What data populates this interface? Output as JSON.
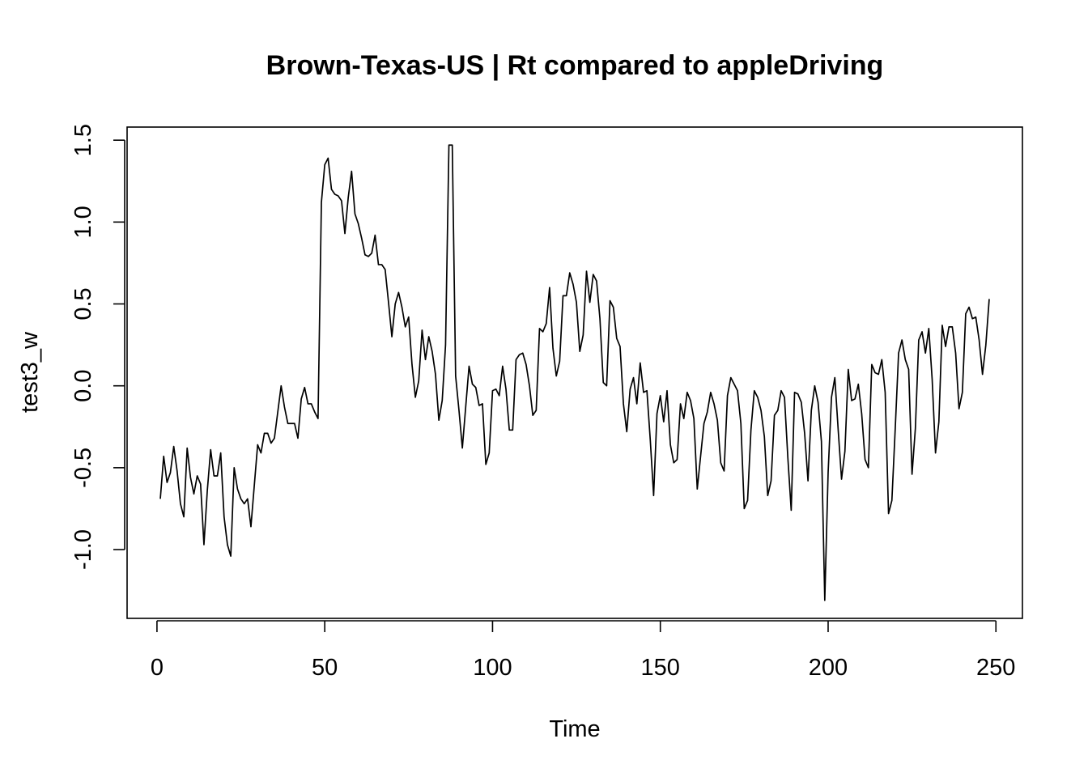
{
  "chart_data": {
    "type": "line",
    "title": "Brown-Texas-US | Rt compared to appleDriving",
    "xlabel": "Time",
    "ylabel": "test3_w",
    "xlim": [
      -8.9,
      257.9
    ],
    "ylim": [
      -1.42,
      1.58
    ],
    "xticks": [
      0,
      50,
      100,
      150,
      200,
      250
    ],
    "yticks": [
      -1.0,
      -0.5,
      0.0,
      0.5,
      1.0,
      1.5
    ],
    "xtick_labels": [
      "0",
      "50",
      "100",
      "150",
      "200",
      "250"
    ],
    "ytick_labels": [
      "-1.0",
      "-0.5",
      "0.0",
      "0.5",
      "1.0",
      "1.5"
    ],
    "grid": false,
    "legend": "none",
    "line_color": "#000000",
    "series": [
      {
        "x": [
          1,
          2,
          3,
          4,
          5,
          6,
          7,
          8,
          9,
          10,
          11,
          12,
          13,
          14,
          15,
          16,
          17,
          18,
          19,
          20,
          21,
          22,
          23,
          24,
          25,
          26,
          27,
          28,
          29,
          30,
          31,
          32,
          33,
          34,
          35,
          36,
          37,
          38,
          39,
          40,
          41,
          42,
          43,
          44,
          45,
          46,
          47,
          48,
          49,
          50,
          51,
          52,
          53,
          54,
          55,
          56,
          57,
          58,
          59,
          60,
          61,
          62,
          63,
          64,
          65,
          66,
          67,
          68,
          69,
          70,
          71,
          72,
          73,
          74,
          75,
          76,
          77,
          78,
          79,
          80,
          81,
          82,
          83,
          84,
          85,
          86,
          87,
          88,
          89,
          90,
          91,
          92,
          93,
          94,
          95,
          96,
          97,
          98,
          99,
          100,
          101,
          102,
          103,
          104,
          105,
          106,
          107,
          108,
          109,
          110,
          111,
          112,
          113,
          114,
          115,
          116,
          117,
          118,
          119,
          120,
          121,
          122,
          123,
          124,
          125,
          126,
          127,
          128,
          129,
          130,
          131,
          132,
          133,
          134,
          135,
          136,
          137,
          138,
          139,
          140,
          141,
          142,
          143,
          144,
          145,
          146,
          147,
          148,
          149,
          150,
          151,
          152,
          153,
          154,
          155,
          156,
          157,
          158,
          159,
          160,
          161,
          162,
          163,
          164,
          165,
          166,
          167,
          168,
          169,
          170,
          171,
          172,
          173,
          174,
          175,
          176,
          177,
          178,
          179,
          180,
          181,
          182,
          183,
          184,
          185,
          186,
          187,
          188,
          189,
          190,
          191,
          192,
          193,
          194,
          195,
          196,
          197,
          198,
          199,
          200,
          201,
          202,
          203,
          204,
          205,
          206,
          207,
          208,
          209,
          210,
          211,
          212,
          213,
          214,
          215,
          216,
          217,
          218,
          219,
          220,
          221,
          222,
          223,
          224,
          225,
          226,
          227,
          228,
          229,
          230,
          231,
          232,
          233,
          234,
          235,
          236,
          237,
          238,
          239,
          240,
          241,
          242,
          243,
          244,
          245,
          246,
          247,
          248
        ],
        "y": [
          -0.69,
          -0.43,
          -0.59,
          -0.53,
          -0.37,
          -0.52,
          -0.72,
          -0.8,
          -0.38,
          -0.56,
          -0.66,
          -0.55,
          -0.6,
          -0.97,
          -0.64,
          -0.39,
          -0.55,
          -0.55,
          -0.41,
          -0.8,
          -0.97,
          -1.04,
          -0.5,
          -0.63,
          -0.69,
          -0.72,
          -0.69,
          -0.86,
          -0.61,
          -0.36,
          -0.41,
          -0.29,
          -0.29,
          -0.35,
          -0.32,
          -0.16,
          0.0,
          -0.13,
          -0.23,
          -0.23,
          -0.23,
          -0.32,
          -0.08,
          -0.01,
          -0.11,
          -0.11,
          -0.16,
          -0.2,
          1.12,
          1.35,
          1.39,
          1.2,
          1.17,
          1.16,
          1.13,
          0.93,
          1.15,
          1.31,
          1.05,
          0.99,
          0.9,
          0.8,
          0.79,
          0.81,
          0.92,
          0.74,
          0.74,
          0.71,
          0.51,
          0.3,
          0.5,
          0.57,
          0.48,
          0.36,
          0.42,
          0.13,
          -0.07,
          0.03,
          0.34,
          0.16,
          0.3,
          0.21,
          0.07,
          -0.21,
          -0.09,
          0.25,
          1.47,
          1.47,
          0.06,
          -0.15,
          -0.38,
          -0.13,
          0.12,
          0.01,
          -0.01,
          -0.12,
          -0.11,
          -0.48,
          -0.41,
          -0.03,
          -0.02,
          -0.06,
          0.12,
          -0.02,
          -0.27,
          -0.27,
          0.16,
          0.19,
          0.2,
          0.13,
          0.0,
          -0.18,
          -0.15,
          0.35,
          0.33,
          0.38,
          0.6,
          0.23,
          0.06,
          0.15,
          0.55,
          0.55,
          0.69,
          0.62,
          0.51,
          0.21,
          0.31,
          0.7,
          0.51,
          0.68,
          0.64,
          0.41,
          0.02,
          0.0,
          0.52,
          0.48,
          0.29,
          0.24,
          -0.11,
          -0.28,
          -0.02,
          0.05,
          -0.11,
          0.14,
          -0.04,
          -0.03,
          -0.33,
          -0.67,
          -0.17,
          -0.06,
          -0.22,
          -0.03,
          -0.36,
          -0.47,
          -0.45,
          -0.11,
          -0.2,
          -0.04,
          -0.09,
          -0.2,
          -0.63,
          -0.43,
          -0.23,
          -0.16,
          -0.04,
          -0.11,
          -0.21,
          -0.47,
          -0.52,
          -0.06,
          0.05,
          0.01,
          -0.03,
          -0.23,
          -0.75,
          -0.7,
          -0.27,
          -0.03,
          -0.07,
          -0.15,
          -0.31,
          -0.67,
          -0.58,
          -0.18,
          -0.15,
          -0.03,
          -0.07,
          -0.44,
          -0.76,
          -0.04,
          -0.05,
          -0.1,
          -0.29,
          -0.58,
          -0.15,
          0.0,
          -0.1,
          -0.34,
          -1.31,
          -0.53,
          -0.07,
          0.05,
          -0.27,
          -0.57,
          -0.4,
          0.1,
          -0.09,
          -0.08,
          0.01,
          -0.17,
          -0.45,
          -0.5,
          0.13,
          0.08,
          0.07,
          0.16,
          -0.04,
          -0.78,
          -0.7,
          -0.26,
          0.2,
          0.28,
          0.16,
          0.1,
          -0.54,
          -0.26,
          0.28,
          0.33,
          0.2,
          0.35,
          0.04,
          -0.41,
          -0.22,
          0.37,
          0.24,
          0.36,
          0.36,
          0.2,
          -0.14,
          -0.04,
          0.44,
          0.48,
          0.41,
          0.42,
          0.28,
          0.07,
          0.25,
          0.53
        ]
      }
    ]
  }
}
